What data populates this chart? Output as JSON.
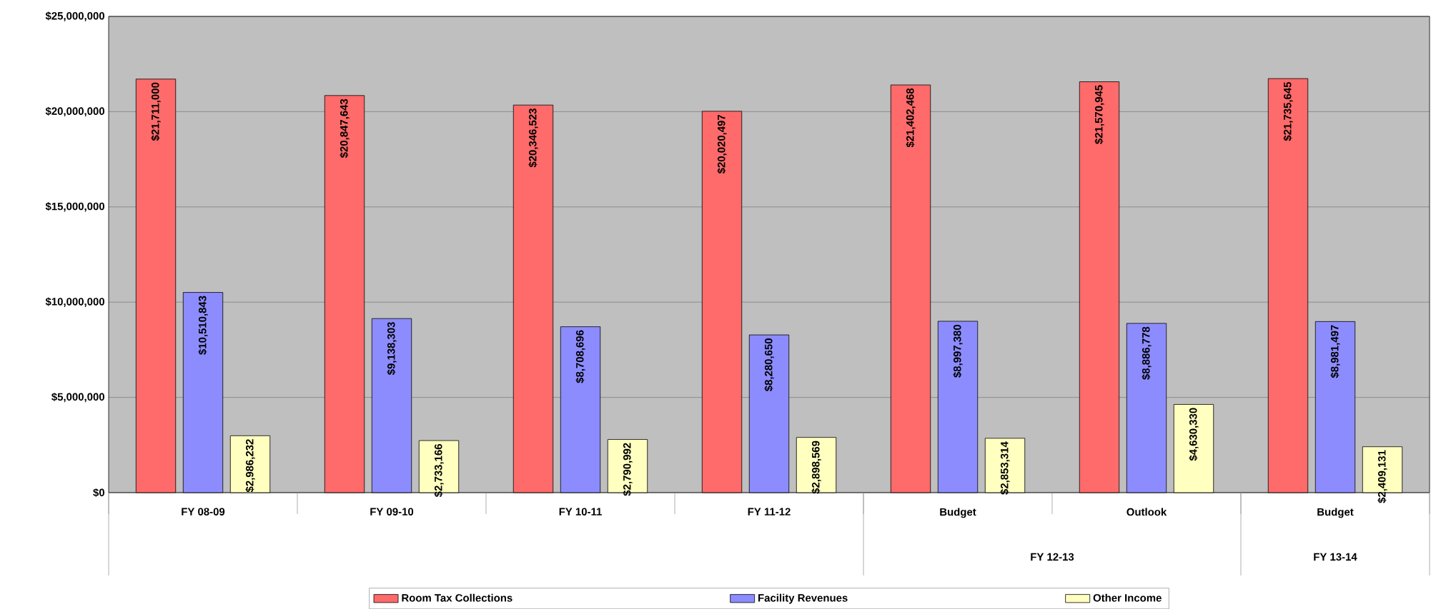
{
  "chart_data": {
    "type": "bar",
    "categories": [
      "FY 08-09",
      "FY 09-10",
      "FY 10-11",
      "FY 11-12",
      "Budget",
      "Outlook",
      "Budget"
    ],
    "series": [
      {
        "name": "Room Tax Collections",
        "color": "#ff6a6a",
        "values": [
          21711000,
          20847643,
          20346523,
          20020497,
          21402468,
          21570945,
          21735645
        ],
        "value_labels": [
          "$21,711,000",
          "$20,847,643",
          "$20,346,523",
          "$20,020,497",
          "$21,402,468",
          "$21,570,945",
          "$21,735,645"
        ]
      },
      {
        "name": "Facility Revenues",
        "color": "#8c8cff",
        "values": [
          10510843,
          9138303,
          8708696,
          8280650,
          8997380,
          8886778,
          8981497
        ],
        "value_labels": [
          "$10,510,843",
          "$9,138,303",
          "$8,708,696",
          "$8,280,650",
          "$8,997,380",
          "$8,886,778",
          "$8,981,497"
        ]
      },
      {
        "name": "Other Income",
        "color": "#ffffc0",
        "values": [
          2986232,
          2733166,
          2790992,
          2898569,
          2853314,
          4630330,
          2409131
        ],
        "value_labels": [
          "$2,986,232",
          "$2,733,166",
          "$2,790,992",
          "$2,898,569",
          "$2,853,314",
          "$4,630,330",
          "$2,409,131"
        ]
      }
    ],
    "ylim": [
      0,
      25000000
    ],
    "yticks": [
      {
        "value": 0,
        "label": "$0"
      },
      {
        "value": 5000000,
        "label": "$5,000,000"
      },
      {
        "value": 10000000,
        "label": "$10,000,000"
      },
      {
        "value": 15000000,
        "label": "$15,000,000"
      },
      {
        "value": 20000000,
        "label": "$20,000,000"
      },
      {
        "value": 25000000,
        "label": "$25,000,000"
      }
    ],
    "grid": "y",
    "legend": "bottom",
    "annotations": [
      "FY 12-13",
      "FY 13-14"
    ]
  }
}
